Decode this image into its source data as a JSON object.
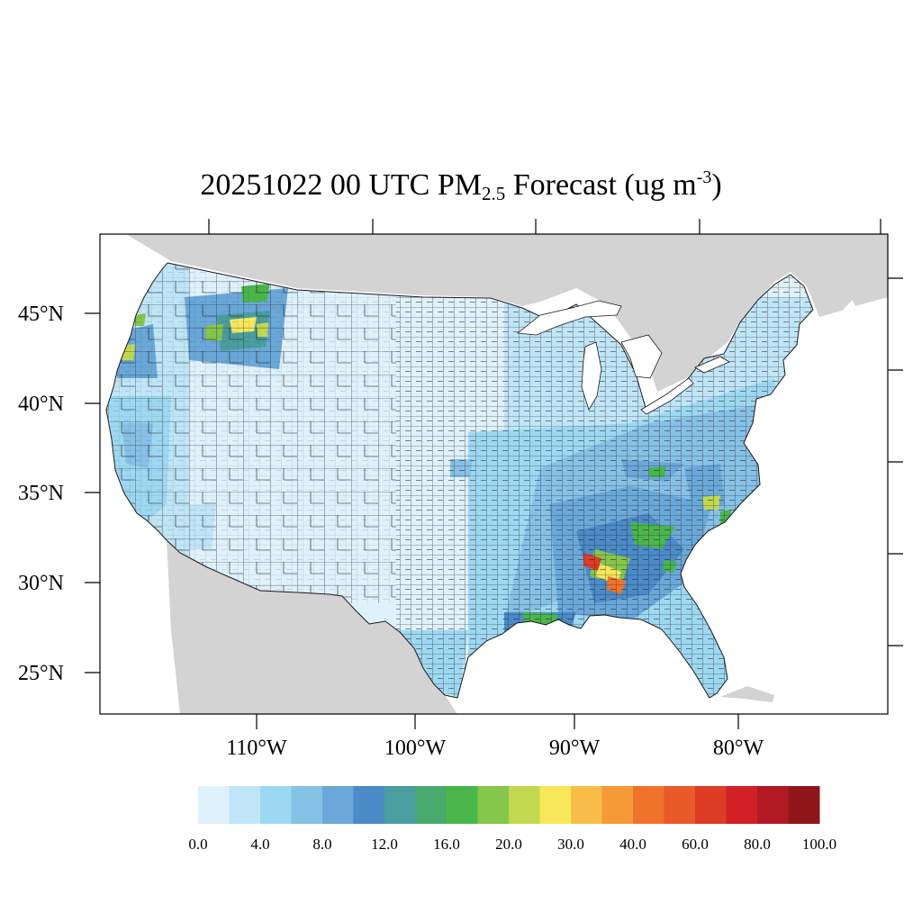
{
  "title": {
    "prefix": "20251022 00 UTC PM",
    "subscript": "2.5",
    "middle": " Forecast (ug m",
    "superscript": "-3",
    "suffix": ")"
  },
  "axes": {
    "lat_labels": [
      "45°N",
      "40°N",
      "35°N",
      "30°N",
      "25°N"
    ],
    "lon_labels": [
      "110°W",
      "100°W",
      "90°W",
      "80°W"
    ]
  },
  "colorbar": {
    "colors": [
      "#dff1fb",
      "#bfe5f7",
      "#9dd8f2",
      "#86c1e6",
      "#6aa8d9",
      "#4a8bc8",
      "#4a9ea0",
      "#4aa96c",
      "#4ab64a",
      "#86c64a",
      "#c2d84e",
      "#f6e85a",
      "#f7bd48",
      "#f69a38",
      "#f1722a",
      "#e85a28",
      "#dd3c25",
      "#d22027",
      "#b11a22",
      "#8f1518"
    ],
    "labels": [
      "0.0",
      "4.0",
      "8.0",
      "12.0",
      "16.0",
      "20.0",
      "30.0",
      "40.0",
      "60.0",
      "80.0",
      "100.0"
    ]
  },
  "map_colors": {
    "land_outside": "#d3d3d3",
    "water": "#ffffff",
    "county_border": "#1a1a1a"
  }
}
